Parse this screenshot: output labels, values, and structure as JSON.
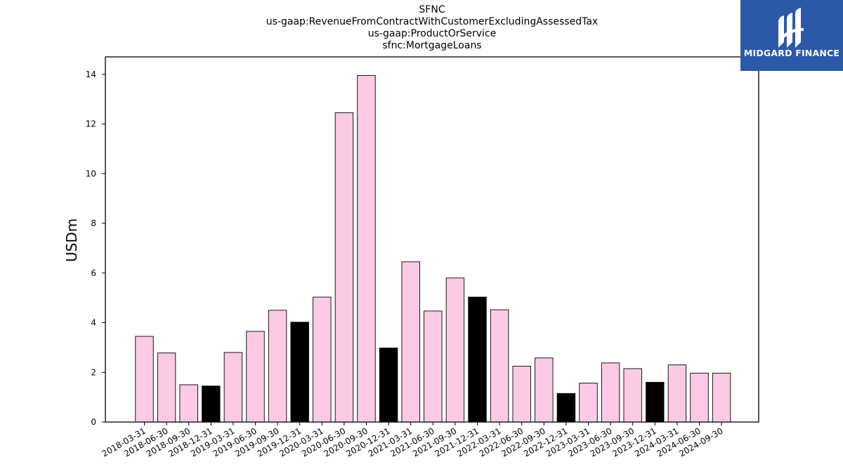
{
  "chart_data": {
    "type": "bar",
    "title": [
      "SFNC",
      "us-gaap:RevenueFromContractWithCustomerExcludingAssessedTax",
      "us-gaap:ProductOrService",
      "sfnc:MortgageLoans"
    ],
    "xlabel": "",
    "ylabel": "USDm",
    "ylim": [
      0,
      14.7
    ],
    "yticks": [
      0,
      2,
      4,
      6,
      8,
      10,
      12,
      14
    ],
    "grid": false,
    "legend": "none",
    "categories": [
      "2018-03-31",
      "2018-06-30",
      "2018-09-30",
      "2018-12-31",
      "2019-03-31",
      "2019-06-30",
      "2019-09-30",
      "2019-12-31",
      "2020-03-31",
      "2020-06-30",
      "2020-09-30",
      "2020-12-31",
      "2021-03-31",
      "2021-06-30",
      "2021-09-30",
      "2021-12-31",
      "2022-03-31",
      "2022-06-30",
      "2022-09-30",
      "2022-12-31",
      "2023-03-31",
      "2023-06-30",
      "2023-09-30",
      "2023-12-31",
      "2024-03-31",
      "2024-06-30",
      "2024-09-30"
    ],
    "values": [
      3.45,
      2.78,
      1.5,
      1.45,
      2.8,
      3.65,
      4.5,
      4.02,
      5.03,
      12.45,
      13.95,
      2.98,
      6.45,
      4.47,
      5.8,
      5.03,
      4.52,
      2.25,
      2.58,
      1.15,
      1.57,
      2.38,
      2.15,
      1.6,
      2.3,
      1.97,
      1.97
    ],
    "highlight_indices": [
      3,
      7,
      11,
      15,
      19,
      23
    ],
    "colors": {
      "bar": "#fccae4",
      "highlight": "#000000",
      "edge": "#000000"
    }
  },
  "logo": {
    "text": "MIDGARD FINANCE",
    "background": "#2b59a8",
    "icon": "midgard-logo-icon"
  }
}
